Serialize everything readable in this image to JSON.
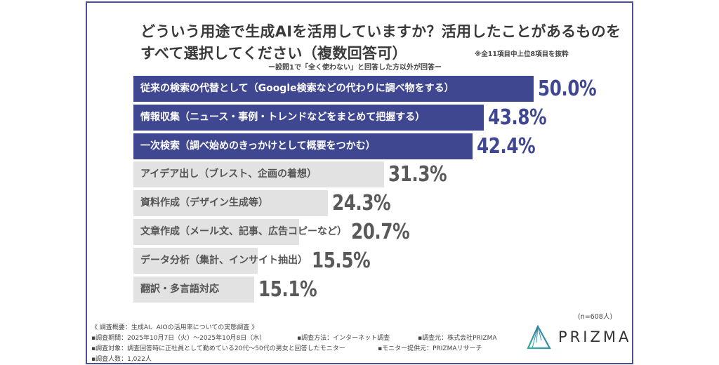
{
  "header": {
    "title_line1": "どういう用途で生成AIを活用していますか？活用したことがあるものを",
    "title_line2": "すべて選択してください（複数回答可）",
    "note": "※全11項目中上位8項目を抜粋",
    "subtitle": "ー設問1で「全く使わない」と回答した方以外が回答ー"
  },
  "chart_data": {
    "type": "bar",
    "orientation": "horizontal",
    "categories": [
      "従来の検索の代替として（Google検索などの代わりに調べ物をする）",
      "情報収集（ニュース・事例・トレンドなどをまとめて把握する）",
      "一次検索（調べ始めのきっかけとして概要をつかむ）",
      "アイデア出し（ブレスト、企画の着想）",
      "資料作成（デザイン生成等）",
      "文章作成（メール文、記事、広告コピーなど）",
      "データ分析（集計、インサイト抽出）",
      "翻訳・多言語対応"
    ],
    "values": [
      50.0,
      43.8,
      42.4,
      31.3,
      24.3,
      20.7,
      15.5,
      15.1
    ],
    "value_labels": [
      "50.0%",
      "43.8%",
      "42.4%",
      "31.3%",
      "24.3%",
      "20.7%",
      "15.5%",
      "15.1%"
    ],
    "highlighted_top": 3,
    "xlim": [
      0,
      100
    ],
    "colors": {
      "highlight": "#3f4791",
      "other": "#e2e2e2",
      "highlight_text": "#3f4791",
      "other_text": "#595959"
    }
  },
  "sample_size": "(n=608人)",
  "footer": {
    "overview": "《 調査概要：生成AI、AIOの活用率についての実態調査 》",
    "period": "▪調査期間：2025年10月7日（火）～2025年10月8日（水）",
    "method": "▪調査方法：インターネット調査",
    "organizer": "▪調査元：株式会社PRIZMA",
    "target": "▪調査対象：調査回答時に正社員として勤めている20代～50代の男女と回答したモニター",
    "provider": "▪モニター提供元：PRIZMAリサーチ",
    "respondents": "▪調査人数：1,022人"
  },
  "logo": {
    "text": "PRIZMA"
  }
}
